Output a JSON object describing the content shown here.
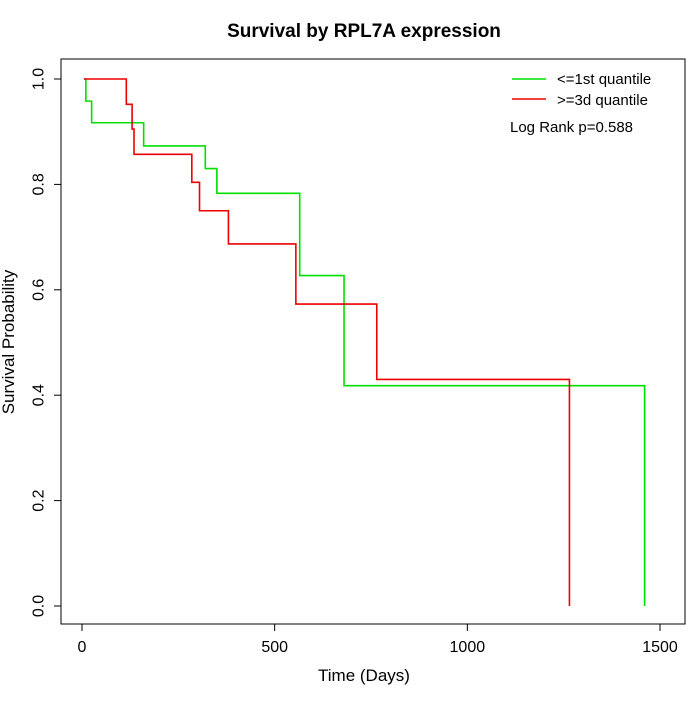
{
  "chart_data": {
    "type": "line",
    "subtype": "kaplan-meier step",
    "title": "Survival by RPL7A expression",
    "xlabel": "Time (Days)",
    "ylabel": "Survival Probability",
    "xlim": [
      0,
      1500
    ],
    "ylim": [
      0,
      1
    ],
    "x_ticks": [
      0,
      500,
      1000,
      1500
    ],
    "y_ticks": [
      0.0,
      0.2,
      0.4,
      0.6,
      0.8,
      1.0
    ],
    "x_tick_labels": [
      "0",
      "500",
      "1000",
      "1500"
    ],
    "y_tick_labels": [
      "0.0",
      "0.2",
      "0.4",
      "0.6",
      "0.8",
      "1.0"
    ],
    "grid": false,
    "legend_position": "top-right",
    "annotation": "Log Rank p=0.588",
    "series": [
      {
        "name": "<=1st quantile",
        "color": "#00e000",
        "x": [
          5,
          10,
          25,
          160,
          320,
          350,
          565,
          680,
          1460
        ],
        "y": [
          1.0,
          0.958,
          0.917,
          0.873,
          0.83,
          0.783,
          0.627,
          0.418,
          0.0
        ]
      },
      {
        "name": ">=3d quantile",
        "color": "#ee0000",
        "x": [
          5,
          115,
          130,
          135,
          285,
          305,
          380,
          555,
          765,
          1265
        ],
        "y": [
          1.0,
          0.952,
          0.905,
          0.857,
          0.804,
          0.75,
          0.687,
          0.573,
          0.43,
          0.0
        ]
      }
    ]
  }
}
